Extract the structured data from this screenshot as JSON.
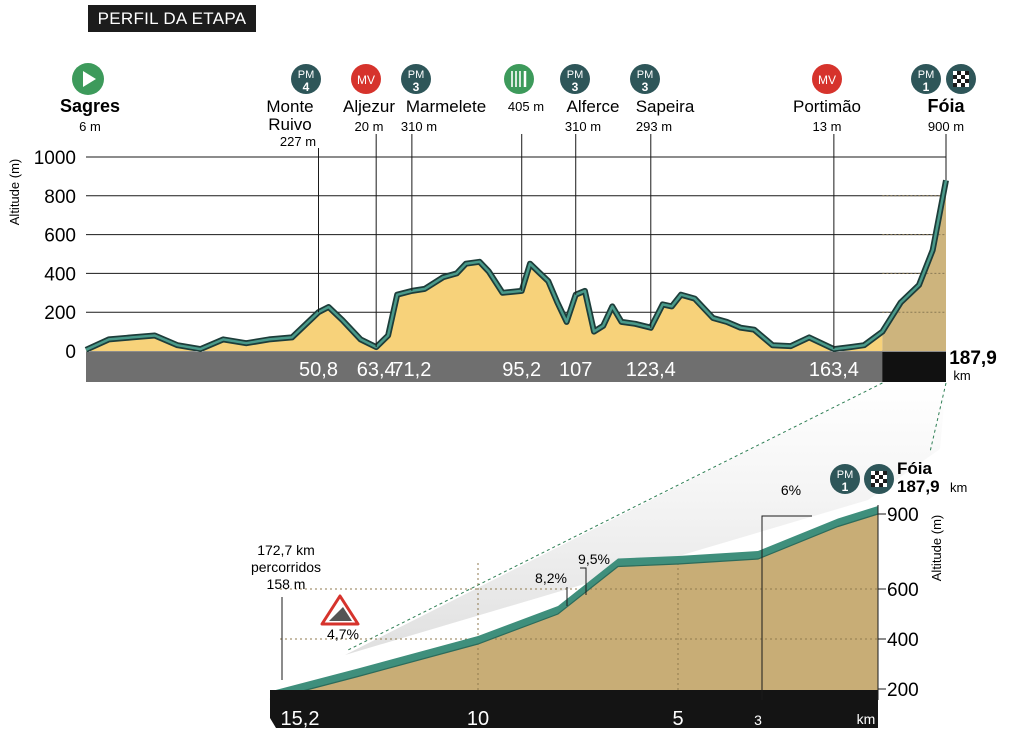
{
  "title": "PERFIL DA ETAPA",
  "colors": {
    "profile_fill": "#f7d27a",
    "final_fill": "#cdb47d",
    "line": "#1d3d3a",
    "line_inner": "#4a9a8a",
    "teal_marker": "#2e5659",
    "red_marker": "#d6332c",
    "green_marker": "#3d9a5b",
    "axis_band": "#6f6f6f",
    "axis_band_dark": "#111111",
    "climb_fill": "#c8ad76",
    "climb_road": "#3f8f7c"
  },
  "profile": {
    "ylabel": "Altitude (m)",
    "yticks": [
      "0",
      "200",
      "400",
      "600",
      "800",
      "1000"
    ],
    "total_km": "187,9",
    "km_unit": "km",
    "km_marks": [
      "50,8",
      "63,4",
      "71,2",
      "95,2",
      "107",
      "123,4",
      "163,4"
    ],
    "points": [
      {
        "icon": "start-flag-icon",
        "name": "Sagres",
        "alt": "6 m",
        "bold": true
      },
      {
        "badge": "PM",
        "cat": "4",
        "name": "Monte Ruivo",
        "alt": "227 m"
      },
      {
        "badge": "MV",
        "name": "Aljezur",
        "alt": "20 m"
      },
      {
        "badge": "PM",
        "cat": "3",
        "name": "Marmelete",
        "alt": "310 m"
      },
      {
        "icon": "feed-zone-icon",
        "name": "",
        "alt": "405 m"
      },
      {
        "badge": "PM",
        "cat": "3",
        "name": "Alferce",
        "alt": "310 m"
      },
      {
        "badge": "PM",
        "cat": "3",
        "name": "Sapeira",
        "alt": "293 m"
      },
      {
        "badge": "MV",
        "name": "Portimão",
        "alt": "13 m"
      },
      {
        "badge": "PM",
        "cat": "1",
        "icon": "finish-flag-icon",
        "name": "Fóia",
        "alt": "900 m",
        "bold": true
      }
    ]
  },
  "climb": {
    "ylabel": "Altitude (m)",
    "yticks": [
      "200",
      "400",
      "600",
      "900"
    ],
    "start_label": [
      "172,7 km",
      "percorridos",
      "158 m"
    ],
    "xticks": [
      "15,2",
      "10",
      "5",
      "3"
    ],
    "km_unit": "km",
    "warning_grade": "4,7%",
    "grades": [
      "8,2%",
      "9,5%",
      "6%"
    ],
    "finish_name": "Fóia",
    "finish_km": "187,9",
    "finish_unit": "km",
    "badge": "PM",
    "cat": "1"
  },
  "chart_data": [
    {
      "type": "area",
      "title": "PERFIL DA ETAPA",
      "ylabel": "Altitude (m)",
      "xlabel": "km",
      "xlim": [
        0,
        187.9
      ],
      "ylim": [
        0,
        1000
      ],
      "x": [
        0,
        5,
        10,
        15,
        20,
        25,
        30,
        35,
        40,
        45,
        50.8,
        53,
        56,
        60,
        63.4,
        66,
        68,
        71.2,
        74,
        78,
        81,
        83,
        86,
        88,
        91,
        95.2,
        97,
        99,
        101,
        103,
        105,
        107,
        109,
        111,
        113,
        115,
        117,
        120,
        123.4,
        126,
        128,
        130,
        133,
        137,
        140,
        143,
        146,
        150,
        154,
        158,
        163.4,
        167,
        170,
        174,
        178,
        182,
        185,
        187.9
      ],
      "y": [
        6,
        60,
        70,
        80,
        30,
        10,
        60,
        40,
        60,
        70,
        200,
        227,
        160,
        60,
        20,
        80,
        290,
        310,
        320,
        380,
        400,
        450,
        460,
        410,
        300,
        310,
        450,
        405,
        360,
        250,
        150,
        290,
        310,
        100,
        130,
        230,
        150,
        140,
        120,
        240,
        230,
        290,
        270,
        170,
        150,
        120,
        110,
        30,
        25,
        70,
        10,
        20,
        30,
        100,
        250,
        340,
        520,
        880
      ]
    },
    {
      "type": "area",
      "title": "",
      "ylabel": "Altitude (m)",
      "xlabel": "km",
      "xlim": [
        15.2,
        0
      ],
      "ylim": [
        150,
        950
      ],
      "x": [
        15.2,
        13,
        10,
        8,
        6.5,
        5,
        3,
        1,
        0
      ],
      "y": [
        158,
        250,
        380,
        500,
        690,
        700,
        720,
        850,
        900
      ]
    }
  ]
}
